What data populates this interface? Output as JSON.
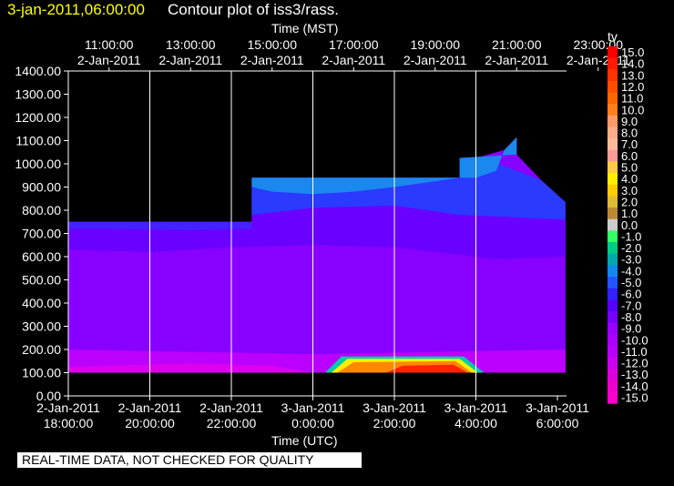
{
  "header": {
    "date": "3-jan-2011,06:00:00",
    "title": "Contour plot of iss3/rass."
  },
  "footer_note": "REAL-TIME DATA, NOT CHECKED FOR QUALITY",
  "chart_data": {
    "type": "heatmap",
    "title": "Contour plot of iss3/rass.",
    "top_axis_label": "Time (MST)",
    "xlabel": "Time (UTC)",
    "ylabel": "",
    "colorbar_label": "tv",
    "grid": true,
    "ylim": [
      0,
      1400
    ],
    "y_ticks": [
      "0.00",
      "100.00",
      "200.00",
      "300.00",
      "400.00",
      "500.00",
      "600.00",
      "700.00",
      "800.00",
      "900.00",
      "1000.00",
      "1100.00",
      "1200.00",
      "1300.00",
      "1400.00"
    ],
    "x_range_utc": [
      "2-Jan-2011 18:00:00",
      "3-Jan-2011 06:00:00"
    ],
    "top_ticks": [
      {
        "time": "11:00:00",
        "date": "2-Jan-2011",
        "hour": 1
      },
      {
        "time": "13:00:00",
        "date": "2-Jan-2011",
        "hour": 3
      },
      {
        "time": "15:00:00",
        "date": "2-Jan-2011",
        "hour": 5
      },
      {
        "time": "17:00:00",
        "date": "2-Jan-2011",
        "hour": 7
      },
      {
        "time": "19:00:00",
        "date": "2-Jan-2011",
        "hour": 9
      },
      {
        "time": "21:00:00",
        "date": "2-Jan-2011",
        "hour": 11
      },
      {
        "time": "23:00:00",
        "date": "2-Jan-2011",
        "hour": 13
      }
    ],
    "bottom_ticks": [
      {
        "date": "2-Jan-2011",
        "time": "18:00:00",
        "hour": 0
      },
      {
        "date": "2-Jan-2011",
        "time": "20:00:00",
        "hour": 2
      },
      {
        "date": "2-Jan-2011",
        "time": "22:00:00",
        "hour": 4
      },
      {
        "date": "3-Jan-2011",
        "time": "0:00:00",
        "hour": 6
      },
      {
        "date": "3-Jan-2011",
        "time": "2:00:00",
        "hour": 8
      },
      {
        "date": "3-Jan-2011",
        "time": "4:00:00",
        "hour": 10
      },
      {
        "date": "3-Jan-2011",
        "time": "6:00:00",
        "hour": 12
      }
    ],
    "colorbar": [
      {
        "label": "15.0",
        "color": "#ff0000"
      },
      {
        "label": "14.0",
        "color": "#ff1a00"
      },
      {
        "label": "13.0",
        "color": "#ff3300"
      },
      {
        "label": "12.0",
        "color": "#ff4d00"
      },
      {
        "label": "11.0",
        "color": "#ff6600"
      },
      {
        "label": "10.0",
        "color": "#ff7f1a"
      },
      {
        "label": "9.0",
        "color": "#ff9966"
      },
      {
        "label": "8.0",
        "color": "#ffaa88"
      },
      {
        "label": "7.0",
        "color": "#ffbb99"
      },
      {
        "label": "6.0",
        "color": "#ff9999"
      },
      {
        "label": "5.0",
        "color": "#ffcc44"
      },
      {
        "label": "4.0",
        "color": "#ffee00"
      },
      {
        "label": "3.0",
        "color": "#ffcc00"
      },
      {
        "label": "2.0",
        "color": "#ddbb33"
      },
      {
        "label": "1.0",
        "color": "#bb8833"
      },
      {
        "label": "0.0",
        "color": "#cccccc"
      },
      {
        "label": "-1.0",
        "color": "#33ff66"
      },
      {
        "label": "-2.0",
        "color": "#00cc88"
      },
      {
        "label": "-3.0",
        "color": "#00aaaa"
      },
      {
        "label": "-4.0",
        "color": "#1188ee"
      },
      {
        "label": "-5.0",
        "color": "#2255ff"
      },
      {
        "label": "-6.0",
        "color": "#3322ff"
      },
      {
        "label": "-7.0",
        "color": "#5500ff"
      },
      {
        "label": "-8.0",
        "color": "#7700ff"
      },
      {
        "label": "-9.0",
        "color": "#9900ff"
      },
      {
        "label": "-10.0",
        "color": "#aa00ff"
      },
      {
        "label": "-11.0",
        "color": "#bb00ff"
      },
      {
        "label": "-12.0",
        "color": "#cc00ee"
      },
      {
        "label": "-13.0",
        "color": "#dd00dd"
      },
      {
        "label": "-14.0",
        "color": "#ee00cc"
      },
      {
        "label": "-15.0",
        "color": "#ff00cc"
      }
    ],
    "boundary_polygon": [
      [
        0,
        100
      ],
      [
        12.2,
        100
      ],
      [
        12.2,
        835
      ],
      [
        11.6,
        930
      ],
      [
        11.0,
        1040
      ],
      [
        11.0,
        1115
      ],
      [
        10.7,
        1060
      ],
      [
        10.1,
        1030
      ],
      [
        9.6,
        1025
      ],
      [
        9.6,
        940
      ],
      [
        4.5,
        940
      ],
      [
        4.5,
        750
      ],
      [
        0,
        750
      ]
    ],
    "regions": [
      {
        "name": "deep-purple",
        "color": "#8800ff",
        "polygon": [
          [
            0,
            100
          ],
          [
            12.2,
            100
          ],
          [
            12.2,
            835
          ],
          [
            11.6,
            930
          ],
          [
            11.0,
            1040
          ],
          [
            11.0,
            1115
          ],
          [
            10.7,
            1060
          ],
          [
            10.1,
            1030
          ],
          [
            9.6,
            1025
          ],
          [
            9.6,
            940
          ],
          [
            4.5,
            940
          ],
          [
            4.5,
            750
          ],
          [
            0,
            750
          ]
        ]
      },
      {
        "name": "violet-upper",
        "color": "#6a00ff",
        "polygon": [
          [
            0,
            750
          ],
          [
            4.5,
            750
          ],
          [
            4.5,
            880
          ],
          [
            9.6,
            880
          ],
          [
            12.2,
            820
          ],
          [
            12.2,
            600
          ],
          [
            10.5,
            590
          ],
          [
            8.0,
            640
          ],
          [
            6.0,
            650
          ],
          [
            4.0,
            640
          ],
          [
            2.0,
            620
          ],
          [
            0,
            630
          ]
        ]
      },
      {
        "name": "blue-top",
        "color": "#2a3aff",
        "polygon": [
          [
            4.5,
            940
          ],
          [
            9.6,
            940
          ],
          [
            9.6,
            1025
          ],
          [
            10.1,
            1030
          ],
          [
            11.6,
            930
          ],
          [
            12.2,
            835
          ],
          [
            12.2,
            760
          ],
          [
            9.6,
            780
          ],
          [
            8.0,
            820
          ],
          [
            6.0,
            810
          ],
          [
            4.5,
            780
          ]
        ]
      },
      {
        "name": "light-blue-top",
        "color": "#1a88ee",
        "polygon": [
          [
            4.5,
            940
          ],
          [
            9.6,
            940
          ],
          [
            8.0,
            900
          ],
          [
            7.0,
            880
          ],
          [
            6.0,
            870
          ],
          [
            5.0,
            880
          ],
          [
            4.5,
            900
          ]
        ]
      },
      {
        "name": "blue-left-top",
        "color": "#4422ff",
        "polygon": [
          [
            0,
            750
          ],
          [
            4.5,
            750
          ],
          [
            4.5,
            720
          ],
          [
            3.0,
            715
          ],
          [
            1.0,
            720
          ],
          [
            0,
            720
          ]
        ]
      },
      {
        "name": "bluecap-right",
        "color": "#1a88ee",
        "polygon": [
          [
            9.6,
            940
          ],
          [
            9.6,
            1025
          ],
          [
            10.1,
            1030
          ],
          [
            11.0,
            1040
          ],
          [
            11.0,
            1115
          ],
          [
            10.7,
            1060
          ],
          [
            10.5,
            970
          ],
          [
            10.0,
            940
          ]
        ]
      },
      {
        "name": "magenta-bottom",
        "color": "#bb00ff",
        "polygon": [
          [
            0,
            100
          ],
          [
            12.2,
            100
          ],
          [
            12.2,
            200
          ],
          [
            9.0,
            190
          ],
          [
            6.0,
            180
          ],
          [
            3.0,
            190
          ],
          [
            0,
            200
          ]
        ]
      },
      {
        "name": "pink-bottom",
        "color": "#dd00ee",
        "polygon": [
          [
            0,
            100
          ],
          [
            6.0,
            100
          ],
          [
            5.0,
            130
          ],
          [
            3.0,
            140
          ],
          [
            1.0,
            130
          ],
          [
            0,
            125
          ]
        ]
      },
      {
        "name": "cyan-ring",
        "color": "#00ccaa",
        "polygon": [
          [
            6.3,
            100
          ],
          [
            10.2,
            100
          ],
          [
            9.7,
            170
          ],
          [
            6.7,
            170
          ]
        ]
      },
      {
        "name": "yellow-ring",
        "color": "#ffee00",
        "polygon": [
          [
            6.45,
            100
          ],
          [
            10.05,
            100
          ],
          [
            9.6,
            160
          ],
          [
            6.85,
            160
          ]
        ]
      },
      {
        "name": "orange-core",
        "color": "#ff8800",
        "polygon": [
          [
            6.6,
            100
          ],
          [
            9.9,
            100
          ],
          [
            9.5,
            150
          ],
          [
            7.0,
            145
          ]
        ]
      },
      {
        "name": "red-core",
        "color": "#ff2200",
        "polygon": [
          [
            7.8,
            100
          ],
          [
            9.8,
            100
          ],
          [
            9.45,
            135
          ],
          [
            8.2,
            130
          ]
        ]
      }
    ]
  }
}
